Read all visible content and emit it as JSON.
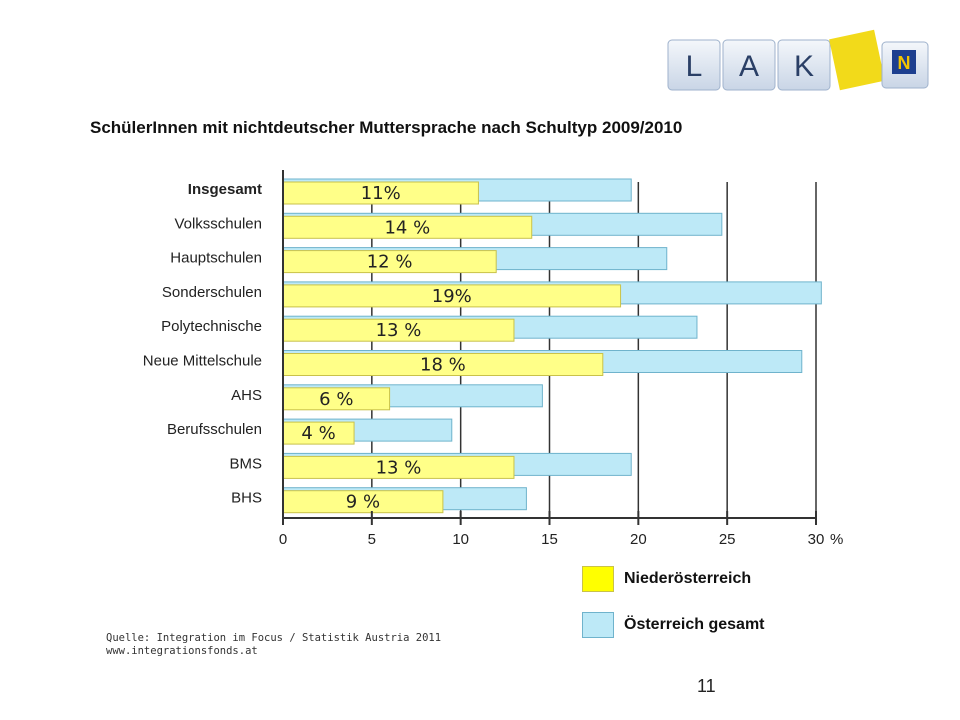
{
  "logo": {
    "letters": [
      "L",
      "A",
      "K"
    ],
    "badge_letter": "N"
  },
  "chart_data": {
    "type": "bar",
    "orientation": "horizontal",
    "title": "SchülerInnen mit nichtdeutscher Muttersprache nach Schultyp 2009/2010",
    "categories": [
      "Insgesamt",
      "Volksschulen",
      "Hauptschulen",
      "Sonderschulen",
      "Polytechnische",
      "Neue Mittelschule",
      "AHS",
      "Berufsschulen",
      "BMS",
      "BHS"
    ],
    "series": [
      {
        "name": "Niederösterreich",
        "color": "#ffff88",
        "values": [
          11,
          14,
          12,
          19,
          13,
          18,
          6,
          4,
          13,
          9
        ],
        "labels": [
          "11%",
          "14 %",
          "12 %",
          "19%",
          "13 %",
          "18 %",
          "6 %",
          "4 %",
          "13 %",
          "9 %"
        ]
      },
      {
        "name": "Österreich gesamt",
        "color": "#bde9f7",
        "values": [
          19.6,
          24.7,
          21.6,
          30.3,
          23.3,
          29.2,
          14.6,
          9.5,
          19.6,
          13.7
        ]
      }
    ],
    "xlim": [
      0,
      30
    ],
    "xticks": [
      0,
      5,
      10,
      15,
      20,
      25,
      30
    ],
    "x_unit": "%",
    "grid": true,
    "legend_position": "bottom-right"
  },
  "source": {
    "line1": "Quelle: Integration im Focus / Statistik Austria 2011",
    "line2": "www.integrationsfonds.at"
  },
  "page_number": "11"
}
